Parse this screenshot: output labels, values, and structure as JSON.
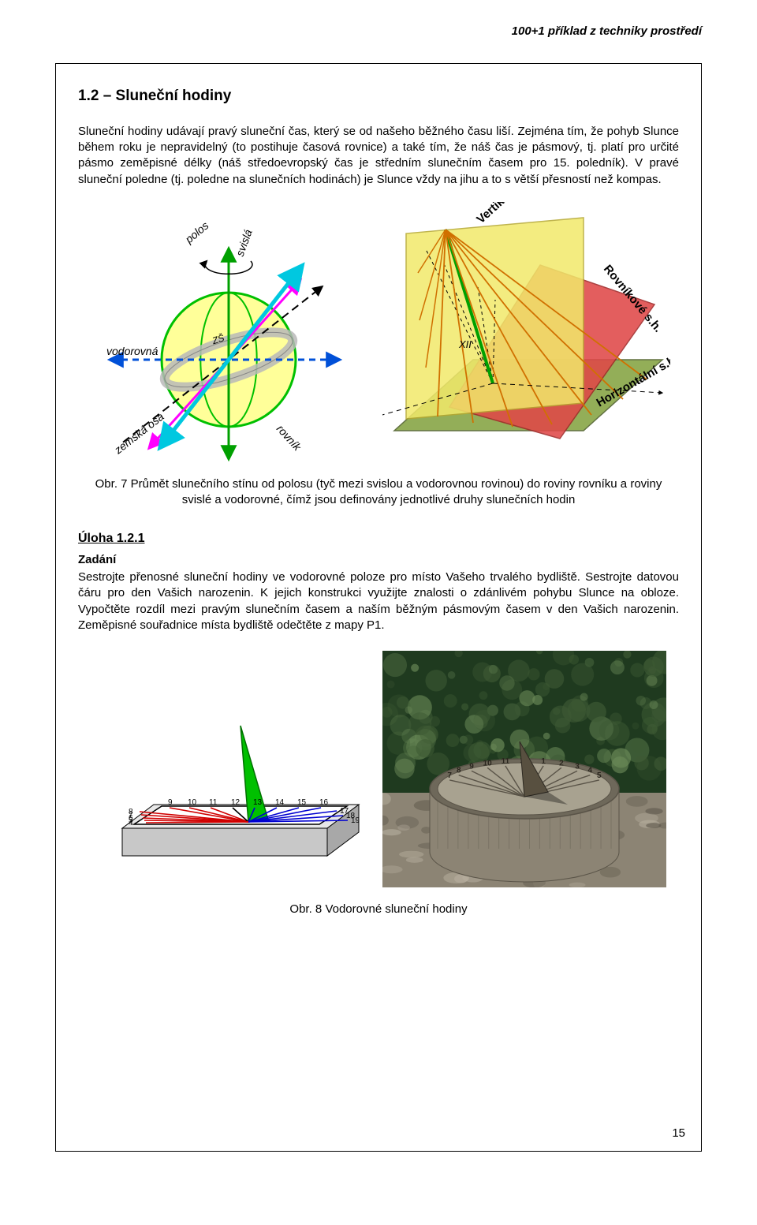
{
  "running_head": "100+1 příklad z techniky prostředí",
  "page_number": "15",
  "section": {
    "number_title": "1.2 – Sluneční hodiny",
    "intro": "Sluneční hodiny udávají pravý sluneční čas, který se od našeho běžného času liší. Zejména tím, že pohyb Slunce během roku je nepravidelný (to postihuje časová rovnice) a také tím, že náš čas je pásmový, tj. platí pro určité pásmo zeměpisné délky (náš středoevropský čas je středním slunečním časem pro 15. poledník). V pravé sluneční poledne (tj. poledne na slunečních hodinách) je Slunce vždy na jihu a to s větší přesností než kompas."
  },
  "figure7": {
    "caption": "Obr. 7 Průmět slunečního stínu od polosu (tyč mezi svislou a vodorovnou rovinou) do roviny rovníku a roviny svislé a vodorovné, čímž jsou definovány jednotlivé druhy slunečních hodin",
    "left": {
      "labels": {
        "polos": "polos",
        "svisla": "svislá",
        "vodorovna": "vodorovná",
        "zs": "ZŠ",
        "zemska_osa": "zemská osa",
        "rovnik": "rovník"
      },
      "colors": {
        "vertical_axis": "#00a000",
        "blue_axis": "#0050d8",
        "polos_axis": "#ff00ff",
        "circle_stroke": "#00c000",
        "circle_fill": "#ffff99",
        "equator_axis": "#00c8e0",
        "zs_band": "#b8b8b8",
        "dash": "#000000"
      }
    },
    "right": {
      "labels": {
        "xii": "XII",
        "vert": "Vertikální s.h.",
        "rov": "Rovníkové s.h.",
        "hor": "Horizontální s.h."
      },
      "colors": {
        "vertical_plane": "#f2e96a",
        "equatorial_plane": "#e04848",
        "horizontal_plane": "#8aa84a",
        "gnomon": "#00a000",
        "rays": "#d07000",
        "dash": "#000000"
      }
    }
  },
  "task": {
    "heading": "Úloha 1.2.1",
    "subheading": "Zadání",
    "body": "Sestrojte přenosné sluneční hodiny ve vodorovné poloze pro místo Vašeho trvalého bydliště. Sestrojte datovou čáru pro den Vašich narozenin. K jejich konstrukci využijte znalosti o zdánlivém pohybu Slunce na obloze. Vypočtěte rozdíl mezi pravým slunečním časem a naším běžným pásmovým časem v den Vašich narozenin. Zeměpisné souřadnice místa bydliště odečtěte z mapy P1."
  },
  "figure8": {
    "caption": "Obr. 8 Vodorovné sluneční hodiny",
    "left": {
      "hours_top": [
        "9",
        "10",
        "11",
        "12",
        "13",
        "14",
        "15",
        "16"
      ],
      "hours_left": [
        "8",
        "7",
        "6",
        "5",
        "4"
      ],
      "hours_right": [
        "17",
        "18",
        "19"
      ],
      "colors": {
        "block_top": "#e8e8e8",
        "block_side": "#a8a8a8",
        "block_front": "#c8c8c8",
        "frame": "#000000",
        "gnomon": "#00c000",
        "morning_rays": "#d00000",
        "afternoon_rays": "#0000d0",
        "text": "#000000"
      }
    },
    "right": {
      "hours": [
        "7",
        "8",
        "9",
        "10",
        "11",
        "12",
        "1",
        "2",
        "3",
        "4",
        "5"
      ],
      "colors": {
        "foliage_dark": "#1f3a1f",
        "foliage_mid": "#3e5a34",
        "foliage_light": "#6b8a58",
        "stone_light": "#b8b0a0",
        "stone_mid": "#8c8474",
        "stone_dark": "#5a5448",
        "dial_face": "#a8a290",
        "dial_edge": "#6e685a",
        "gnomon": "#585040",
        "text": "#2a261e"
      }
    }
  }
}
